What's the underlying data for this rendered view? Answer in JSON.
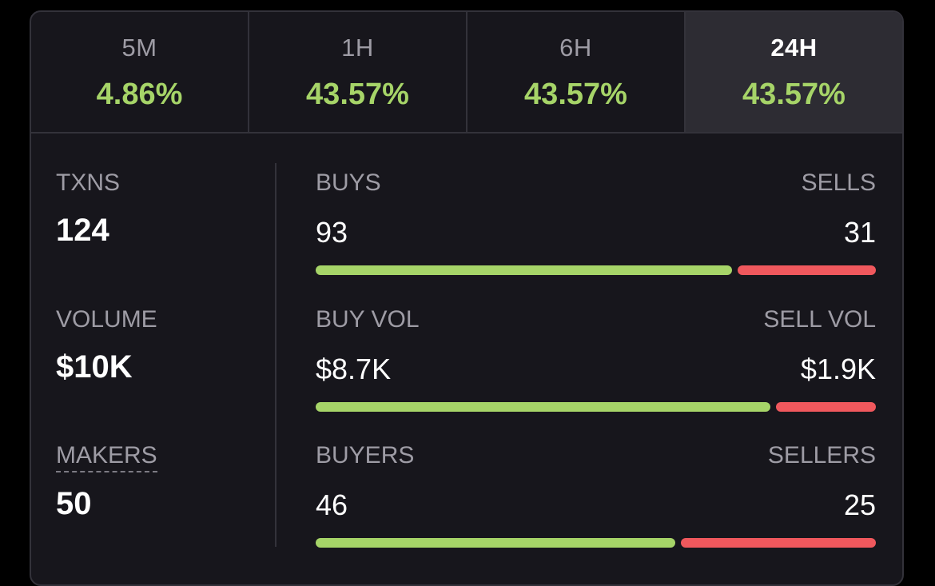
{
  "colors": {
    "positive": "#a6d468",
    "negative": "#f0585d",
    "panel_bg": "#17161c",
    "active_tab_bg": "#2d2c33"
  },
  "tabs": [
    {
      "label": "5M",
      "value": "4.86%",
      "active": false
    },
    {
      "label": "1H",
      "value": "43.57%",
      "active": false
    },
    {
      "label": "6H",
      "value": "43.57%",
      "active": false
    },
    {
      "label": "24H",
      "value": "43.57%",
      "active": true
    }
  ],
  "stats": {
    "txns_label": "TXNS",
    "txns_value": "124",
    "volume_label": "VOLUME",
    "volume_value": "$10K",
    "makers_label": "MAKERS",
    "makers_value": "50"
  },
  "metrics": [
    {
      "left_label": "BUYS",
      "left_value": "93",
      "right_label": "SELLS",
      "right_value": "31",
      "buy_share": 0.75
    },
    {
      "left_label": "BUY VOL",
      "left_value": "$8.7K",
      "right_label": "SELL VOL",
      "right_value": "$1.9K",
      "buy_share": 0.82
    },
    {
      "left_label": "BUYERS",
      "left_value": "46",
      "right_label": "SELLERS",
      "right_value": "25",
      "buy_share": 0.648
    }
  ]
}
